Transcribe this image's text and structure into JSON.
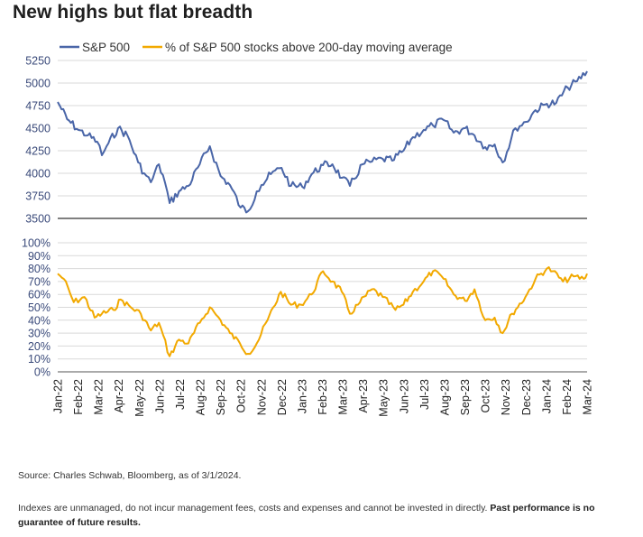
{
  "title": "New highs but flat breadth",
  "source": "Source: Charles Schwab, Bloomberg, as of 3/1/2024.",
  "disclaimer_plain": "Indexes are unmanaged, do not incur management fees, costs and expenses and cannot be invested in directly. ",
  "disclaimer_bold": "Past performance is no guarantee of future results.",
  "colors": {
    "sp500": "#4a66a8",
    "breadth": "#f2a900",
    "grid": "#d9d9d9",
    "axis": "#555555"
  },
  "chart_data": [
    {
      "type": "line",
      "legend_position": "top-left",
      "series": [
        {
          "name": "S&P 500",
          "x": [
            "2022-01-01",
            "2022-01-15",
            "2022-02-01",
            "2022-02-15",
            "2022-03-01",
            "2022-03-08",
            "2022-03-15",
            "2022-04-01",
            "2022-04-15",
            "2022-05-01",
            "2022-05-10",
            "2022-05-20",
            "2022-06-01",
            "2022-06-10",
            "2022-06-17",
            "2022-07-01",
            "2022-07-15",
            "2022-08-01",
            "2022-08-16",
            "2022-09-01",
            "2022-09-15",
            "2022-10-01",
            "2022-10-12",
            "2022-10-25",
            "2022-11-01",
            "2022-11-15",
            "2022-12-01",
            "2022-12-15",
            "2023-01-01",
            "2023-01-15",
            "2023-02-01",
            "2023-02-15",
            "2023-03-01",
            "2023-03-13",
            "2023-04-01",
            "2023-04-15",
            "2023-05-01",
            "2023-05-15",
            "2023-06-01",
            "2023-06-15",
            "2023-07-01",
            "2023-07-15",
            "2023-07-31",
            "2023-08-15",
            "2023-09-01",
            "2023-09-15",
            "2023-10-01",
            "2023-10-15",
            "2023-10-27",
            "2023-11-15",
            "2023-12-01",
            "2023-12-15",
            "2024-01-01",
            "2024-01-15",
            "2024-02-01",
            "2024-02-15",
            "2024-03-01"
          ],
          "values": [
            4790,
            4600,
            4480,
            4420,
            4350,
            4200,
            4300,
            4500,
            4420,
            4120,
            4000,
            3900,
            4100,
            3900,
            3670,
            3800,
            3860,
            4100,
            4300,
            3970,
            3870,
            3620,
            3580,
            3800,
            3870,
            3990,
            4060,
            3860,
            3850,
            3990,
            4090,
            4100,
            3950,
            3860,
            4100,
            4130,
            4160,
            4140,
            4250,
            4400,
            4480,
            4530,
            4590,
            4450,
            4500,
            4420,
            4290,
            4320,
            4120,
            4500,
            4570,
            4700,
            4770,
            4780,
            4950,
            5020,
            5130
          ]
        },
        {
          "name": "% of S&P 500 stocks above 200-day moving average",
          "x": [
            "2022-01-01",
            "2022-01-10",
            "2022-01-25",
            "2022-02-10",
            "2022-02-25",
            "2022-03-08",
            "2022-03-25",
            "2022-04-05",
            "2022-04-20",
            "2022-05-05",
            "2022-05-20",
            "2022-06-01",
            "2022-06-17",
            "2022-07-01",
            "2022-07-15",
            "2022-08-01",
            "2022-08-16",
            "2022-09-01",
            "2022-09-15",
            "2022-09-30",
            "2022-10-12",
            "2022-10-25",
            "2022-11-10",
            "2022-11-30",
            "2022-12-15",
            "2022-12-30",
            "2023-01-15",
            "2023-02-01",
            "2023-02-15",
            "2023-03-01",
            "2023-03-13",
            "2023-03-25",
            "2023-04-15",
            "2023-05-01",
            "2023-05-20",
            "2023-06-01",
            "2023-06-15",
            "2023-07-01",
            "2023-07-15",
            "2023-07-31",
            "2023-08-15",
            "2023-09-01",
            "2023-09-15",
            "2023-10-01",
            "2023-10-15",
            "2023-10-27",
            "2023-11-10",
            "2023-11-30",
            "2023-12-15",
            "2024-01-01",
            "2024-01-10",
            "2024-01-25",
            "2024-02-10",
            "2024-02-25",
            "2024-03-01"
          ],
          "values": [
            76,
            72,
            54,
            58,
            42,
            45,
            48,
            56,
            50,
            45,
            32,
            38,
            12,
            25,
            22,
            38,
            50,
            40,
            30,
            22,
            14,
            22,
            40,
            62,
            52,
            52,
            60,
            78,
            70,
            62,
            45,
            52,
            64,
            58,
            48,
            52,
            62,
            70,
            78,
            72,
            60,
            55,
            64,
            40,
            42,
            30,
            45,
            58,
            72,
            80,
            78,
            70,
            74,
            72,
            76
          ]
        }
      ],
      "x_tick_labels": [
        "Jan-22",
        "Feb-22",
        "Mar-22",
        "Apr-22",
        "May-22",
        "Jun-22",
        "Jul-22",
        "Aug-22",
        "Sep-22",
        "Oct-22",
        "Nov-22",
        "Dec-22",
        "Jan-23",
        "Feb-23",
        "Mar-23",
        "Apr-23",
        "May-23",
        "Jun-23",
        "Jul-23",
        "Aug-23",
        "Sep-23",
        "Oct-23",
        "Nov-23",
        "Dec-23",
        "Jan-24",
        "Feb-24",
        "Mar-24"
      ],
      "x_range": [
        "2022-01-01",
        "2024-03-01"
      ],
      "panels": [
        {
          "series": "S&P 500",
          "ylim": [
            3500,
            5250
          ],
          "y_ticks": [
            "3500",
            "3750",
            "4000",
            "4250",
            "4500",
            "4750",
            "5000",
            "5250"
          ]
        },
        {
          "series": "% of S&P 500 stocks above 200-day moving average",
          "ylim": [
            0,
            100
          ],
          "y_ticks": [
            "0%",
            "10%",
            "20%",
            "30%",
            "40%",
            "50%",
            "60%",
            "70%",
            "80%",
            "90%",
            "100%"
          ]
        }
      ],
      "grid": true
    }
  ]
}
